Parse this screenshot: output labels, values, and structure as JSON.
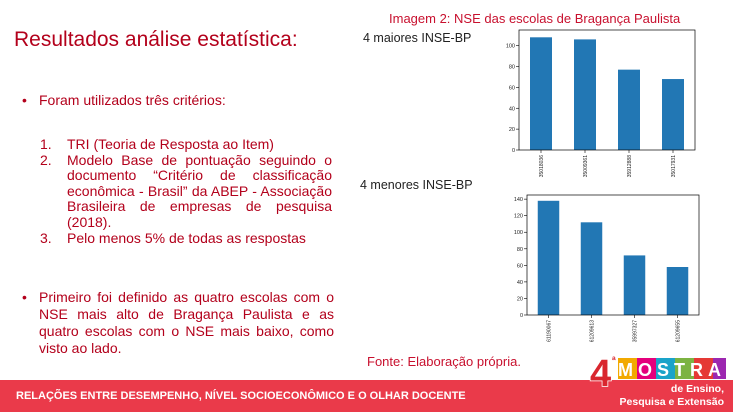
{
  "slide": {
    "title": "Resultados análise estatística:",
    "image_caption": "Imagem 2: NSE das escolas de Bragança Paulista",
    "bullets": [
      "Foram utilizados três critérios:",
      "Primeiro foi definido as quatro escolas com o NSE mais alto de Bragança Paulista e as quatro escolas com o NSE mais baixo, como visto ao lado."
    ],
    "criteria": [
      {
        "num": "1.",
        "text": "TRI (Teoria de Resposta ao Item)"
      },
      {
        "num": "2.",
        "text": "Modelo Base de pontuação seguindo o documento “Critério de classificação econômica - Brasil” da ABEP - Associação Brasileira de empresas de pesquisa (2018)."
      },
      {
        "num": "3.",
        "text": "Pelo menos 5% de todas as respostas"
      }
    ],
    "source": "Fonte: Elaboração própria.",
    "footer": "RELAÇÕES ENTRE DESEMPENHO, NÍVEL SOCIOECONÔMICO E O OLHAR DOCENTE",
    "logo": {
      "numeral": "4",
      "ordinal": "ª",
      "word": "MOSTRA",
      "line1": "de Ensino,",
      "line2": "Pesquisa e Extensão"
    }
  },
  "chart_data": [
    {
      "type": "bar",
      "title": "4 maiores INSE-BP",
      "categories": [
        "35018036",
        "35009361",
        "35912888",
        "35017931"
      ],
      "values": [
        108,
        106,
        77,
        68
      ],
      "ylim": [
        0,
        115
      ],
      "yticks": [
        0,
        20,
        40,
        60,
        80,
        100
      ],
      "color": "#2277b4",
      "grid": false
    },
    {
      "type": "bar",
      "title": "4 menores INSE-BP",
      "categories": [
        "61190067",
        "61209613",
        "35997327",
        "61209655"
      ],
      "values": [
        138,
        112,
        72,
        58
      ],
      "ylim": [
        0,
        145
      ],
      "yticks": [
        0,
        20,
        40,
        60,
        80,
        100,
        120,
        140
      ],
      "color": "#2277b4",
      "grid": false
    }
  ]
}
